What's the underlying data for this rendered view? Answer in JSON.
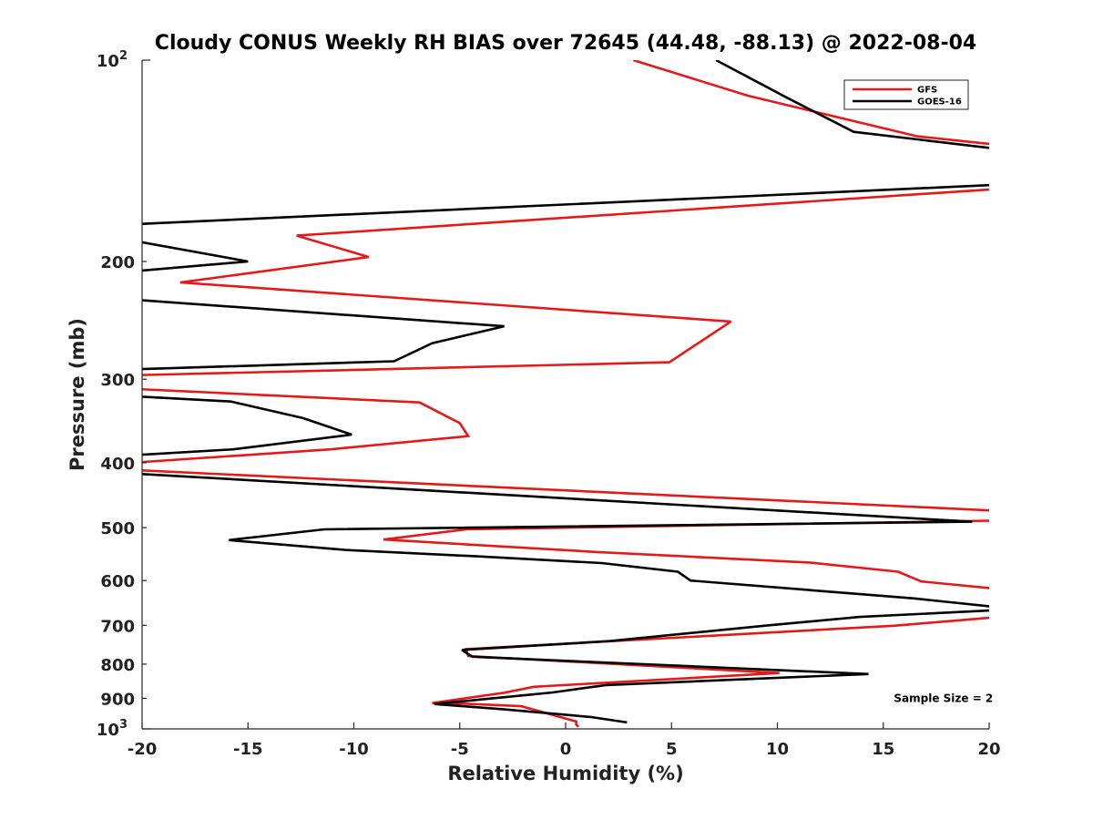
{
  "chart_data": {
    "type": "line",
    "title": "Cloudy CONUS Weekly RH BIAS over 72645 (44.48, -88.13) @ 2022-08-04",
    "xlabel": "Relative Humidity (%)",
    "ylabel": "Pressure (mb)",
    "xlim": [
      -20,
      20
    ],
    "ylim": [
      100,
      1000
    ],
    "y_scale": "log",
    "y_reversed": true,
    "grid": false,
    "legend_position": "top-right",
    "x_ticks": [
      -20,
      -15,
      -10,
      -5,
      0,
      5,
      10,
      15,
      20
    ],
    "x_tick_labels": [
      "-20",
      "-15",
      "-10",
      "-5",
      "0",
      "5",
      "10",
      "15",
      "20"
    ],
    "y_ticks": [
      {
        "value": 100,
        "base": "10",
        "exp": "2"
      },
      {
        "value": 200,
        "label": "200"
      },
      {
        "value": 300,
        "label": "300"
      },
      {
        "value": 400,
        "label": "400"
      },
      {
        "value": 500,
        "label": "500"
      },
      {
        "value": 600,
        "label": "600"
      },
      {
        "value": 700,
        "label": "700"
      },
      {
        "value": 800,
        "label": "800"
      },
      {
        "value": 900,
        "label": "900"
      },
      {
        "value": 1000,
        "base": "10",
        "exp": "3"
      }
    ],
    "annotations": [
      {
        "text": "Sample Size = 2",
        "x": 15.5,
        "y": 900
      }
    ],
    "series": [
      {
        "name": "GFS",
        "color": "#e41a1a",
        "points": [
          [
            3.2,
            100
          ],
          [
            8.6,
            113
          ],
          [
            16.6,
            130
          ],
          [
            21.5,
            135
          ],
          [
            21.5,
            155
          ],
          [
            -12.7,
            183
          ],
          [
            -9.3,
            197
          ],
          [
            -18.2,
            215
          ],
          [
            7.8,
            246
          ],
          [
            4.9,
            283
          ],
          [
            -20.5,
            296
          ],
          [
            -20.5,
            310
          ],
          [
            -6.9,
            325
          ],
          [
            -5.0,
            349
          ],
          [
            -4.6,
            365
          ],
          [
            -11.1,
            382
          ],
          [
            -20.5,
            400
          ],
          [
            -20.5,
            410
          ],
          [
            20.5,
            472
          ],
          [
            20.5,
            488
          ],
          [
            -4.7,
            503
          ],
          [
            -8.6,
            521
          ],
          [
            1.5,
            544
          ],
          [
            11.5,
            564
          ],
          [
            15.7,
            582
          ],
          [
            16.8,
            602
          ],
          [
            20.5,
            618
          ],
          [
            20.5,
            680
          ],
          [
            15.5,
            701
          ],
          [
            -4.7,
            760
          ],
          [
            -4.6,
            778
          ],
          [
            10.1,
            825
          ],
          [
            -1.5,
            865
          ],
          [
            -2.9,
            883
          ],
          [
            -6.3,
            915
          ],
          [
            -4.7,
            917
          ],
          [
            -2.1,
            925
          ],
          [
            0.5,
            975
          ],
          [
            0.5,
            985
          ],
          [
            0.6,
            993
          ]
        ]
      },
      {
        "name": "GOES-16",
        "color": "#000000",
        "points": [
          [
            7.1,
            100
          ],
          [
            10.5,
            114
          ],
          [
            13.6,
            128
          ],
          [
            21.5,
            137
          ],
          [
            21.5,
            153
          ],
          [
            -20.5,
            176
          ],
          [
            -20.5,
            186
          ],
          [
            -15.0,
            200
          ],
          [
            -20.5,
            207
          ],
          [
            -20.5,
            228
          ],
          [
            -2.9,
            250
          ],
          [
            -6.3,
            265
          ],
          [
            -8.1,
            282
          ],
          [
            -20.5,
            290
          ],
          [
            -20.5,
            318
          ],
          [
            -15.8,
            324
          ],
          [
            -12.4,
            343
          ],
          [
            -10.1,
            363
          ],
          [
            -15.7,
            382
          ],
          [
            -20.5,
            390
          ],
          [
            -20.5,
            415
          ],
          [
            19.2,
            490
          ],
          [
            -11.4,
            503
          ],
          [
            -15.9,
            522
          ],
          [
            -10.4,
            540
          ],
          [
            -4.2,
            552
          ],
          [
            1.7,
            565
          ],
          [
            5.3,
            582
          ],
          [
            5.9,
            600
          ],
          [
            16.4,
            638
          ],
          [
            20.5,
            658
          ],
          [
            20.5,
            664
          ],
          [
            13.9,
            680
          ],
          [
            9.6,
            700
          ],
          [
            2.1,
            739
          ],
          [
            -4.9,
            762
          ],
          [
            -4.4,
            780
          ],
          [
            14.3,
            828
          ],
          [
            1.9,
            860
          ],
          [
            -0.6,
            882
          ],
          [
            -6.2,
            918
          ],
          [
            -2.9,
            935
          ],
          [
            1.2,
            960
          ],
          [
            2.9,
            978
          ]
        ]
      }
    ]
  }
}
